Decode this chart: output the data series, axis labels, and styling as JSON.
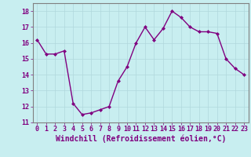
{
  "x": [
    0,
    1,
    2,
    3,
    4,
    5,
    6,
    7,
    8,
    9,
    10,
    11,
    12,
    13,
    14,
    15,
    16,
    17,
    18,
    19,
    20,
    21,
    22,
    23
  ],
  "y": [
    16.2,
    15.3,
    15.3,
    15.5,
    12.2,
    11.5,
    11.6,
    11.8,
    12.0,
    13.6,
    14.5,
    16.0,
    17.0,
    16.2,
    16.9,
    18.0,
    17.6,
    17.0,
    16.7,
    16.7,
    16.6,
    15.0,
    14.4,
    14.0
  ],
  "line_color": "#800080",
  "marker": "D",
  "marker_size": 2.0,
  "bg_color": "#c8eef0",
  "grid_color": "#b0d8dc",
  "xlabel": "Windchill (Refroidissement éolien,°C)",
  "xlabel_fontsize": 7,
  "ylim": [
    11,
    18.5
  ],
  "yticks": [
    11,
    12,
    13,
    14,
    15,
    16,
    17,
    18
  ],
  "xlim": [
    -0.5,
    23.5
  ],
  "xticks": [
    0,
    1,
    2,
    3,
    4,
    5,
    6,
    7,
    8,
    9,
    10,
    11,
    12,
    13,
    14,
    15,
    16,
    17,
    18,
    19,
    20,
    21,
    22,
    23
  ],
  "tick_fontsize": 6,
  "spine_color": "#808080",
  "line_width": 1.0
}
